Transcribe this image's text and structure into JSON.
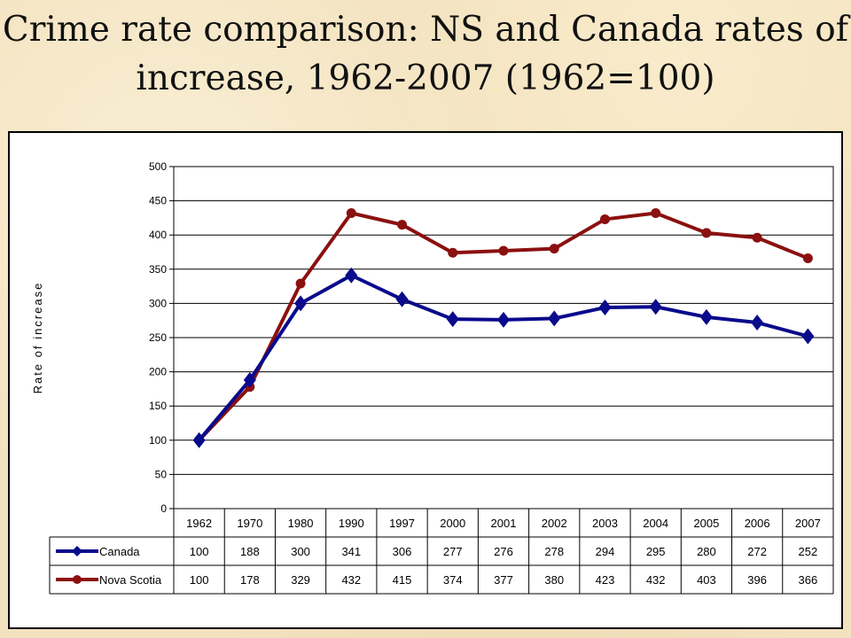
{
  "title": "Crime rate comparison: NS and Canada rates of increase, 1962-2007 (1962=100)",
  "colors": {
    "canada": "#0a0a8c",
    "nova_scotia": "#8b1010",
    "background": "#f3e2bf"
  },
  "chart_data": {
    "type": "line",
    "ylabel": "Rate of increase",
    "ylim": [
      0,
      500
    ],
    "yticks": [
      "0",
      "50",
      "100",
      "150",
      "200",
      "250",
      "300",
      "350",
      "400",
      "450",
      "500"
    ],
    "grid": true,
    "legend": "data-table",
    "categories": [
      "1962",
      "1970",
      "1980",
      "1990",
      "1997",
      "2000",
      "2001",
      "2002",
      "2003",
      "2004",
      "2005",
      "2006",
      "2007"
    ],
    "series": [
      {
        "name": "Canada",
        "marker": "diamond",
        "values": [
          100,
          188,
          300,
          341,
          306,
          277,
          276,
          278,
          294,
          295,
          280,
          272,
          252
        ]
      },
      {
        "name": "Nova Scotia",
        "marker": "circle",
        "values": [
          100,
          178,
          329,
          432,
          415,
          374,
          377,
          380,
          423,
          432,
          403,
          396,
          366
        ]
      }
    ]
  }
}
